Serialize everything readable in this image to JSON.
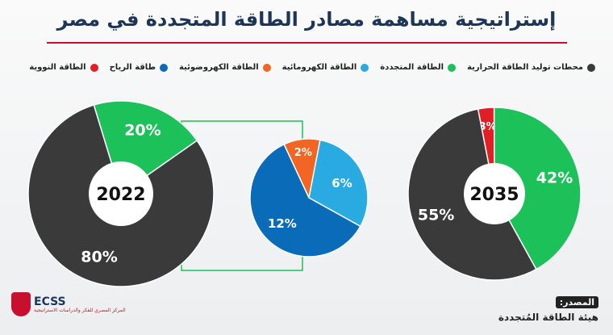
{
  "title": "إستراتيجية مساهمة مصادر الطاقة المتجددة في مصر",
  "legend": [
    {
      "label": "محطات توليد الطاقة الحرارية",
      "color": "#3a3a3a"
    },
    {
      "label": "الطاقة المتجددة",
      "color": "#1cc15a"
    },
    {
      "label": "الطاقة الكهرومائية",
      "color": "#29abe2"
    },
    {
      "label": "الطاقة الكهروضوئية",
      "color": "#f26522"
    },
    {
      "label": "طاقة الرياح",
      "color": "#0a6bb8"
    },
    {
      "label": "الطاقة النووية",
      "color": "#e31e24"
    }
  ],
  "chart_data": [
    {
      "type": "pie",
      "title": "2022",
      "slices": [
        {
          "name": "محطات توليد الطاقة الحرارية",
          "value": 80,
          "label": "80%",
          "color": "#3a3a3a"
        },
        {
          "name": "الطاقة المتجددة",
          "value": 20,
          "label": "20%",
          "color": "#1cc15a"
        }
      ]
    },
    {
      "type": "pie",
      "title": "",
      "slices": [
        {
          "name": "الطاقة الكهروضوئية",
          "value": 2,
          "label": "2%",
          "color": "#f26522"
        },
        {
          "name": "الطاقة الكهرومائية",
          "value": 6,
          "label": "6%",
          "color": "#29abe2"
        },
        {
          "name": "طاقة الرياح",
          "value": 12,
          "label": "12%",
          "color": "#0a6bb8"
        }
      ]
    },
    {
      "type": "pie",
      "title": "2035",
      "slices": [
        {
          "name": "الطاقة النووية",
          "value": 3,
          "label": "3%",
          "color": "#e31e24"
        },
        {
          "name": "الطاقة المتجددة",
          "value": 42,
          "label": "42%",
          "color": "#1cc15a"
        },
        {
          "name": "محطات توليد الطاقة الحرارية",
          "value": 55,
          "label": "55%",
          "color": "#3a3a3a"
        }
      ]
    }
  ],
  "source": {
    "label": "المصدر:",
    "value": "هيئة الطاقة المُتجددة"
  },
  "logo": {
    "name": "ECSS",
    "subtitle": "المركز المصري للفكر والدراسات الاستراتيجية"
  }
}
